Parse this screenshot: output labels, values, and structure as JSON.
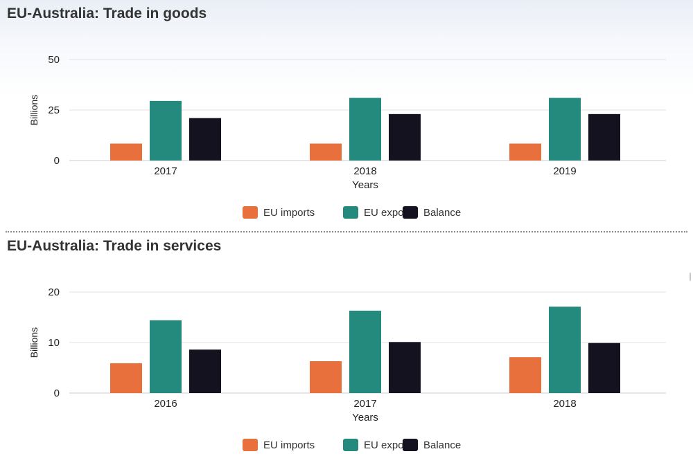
{
  "chart_data": [
    {
      "type": "bar",
      "title": "EU-Australia: Trade in goods",
      "xlabel": "Years",
      "ylabel": "Billions",
      "ylim": [
        0,
        50
      ],
      "yticks": [
        "0",
        "25",
        "50"
      ],
      "grid": true,
      "legend_position": "bottom",
      "categories": [
        "2017",
        "2018",
        "2019"
      ],
      "series": [
        {
          "name": "EU imports",
          "color": "#e8703c",
          "values": [
            8.4,
            8.4,
            8.4
          ]
        },
        {
          "name": "EU exports",
          "color": "#248a7e",
          "values": [
            29.5,
            31.0,
            31.0
          ]
        },
        {
          "name": "Balance",
          "color": "#14121e",
          "values": [
            21.0,
            23.0,
            23.0
          ]
        }
      ]
    },
    {
      "type": "bar",
      "title": "EU-Australia: Trade in services",
      "xlabel": "Years",
      "ylabel": "Billions",
      "ylim": [
        0,
        20
      ],
      "yticks": [
        "0",
        "10",
        "20"
      ],
      "grid": true,
      "legend_position": "bottom",
      "categories": [
        "2016",
        "2017",
        "2018"
      ],
      "series": [
        {
          "name": "EU imports",
          "color": "#e8703c",
          "values": [
            5.9,
            6.3,
            7.1
          ]
        },
        {
          "name": "EU exports",
          "color": "#248a7e",
          "values": [
            14.4,
            16.3,
            17.1
          ]
        },
        {
          "name": "Balance",
          "color": "#14121e",
          "values": [
            8.6,
            10.1,
            9.9
          ]
        }
      ]
    }
  ]
}
